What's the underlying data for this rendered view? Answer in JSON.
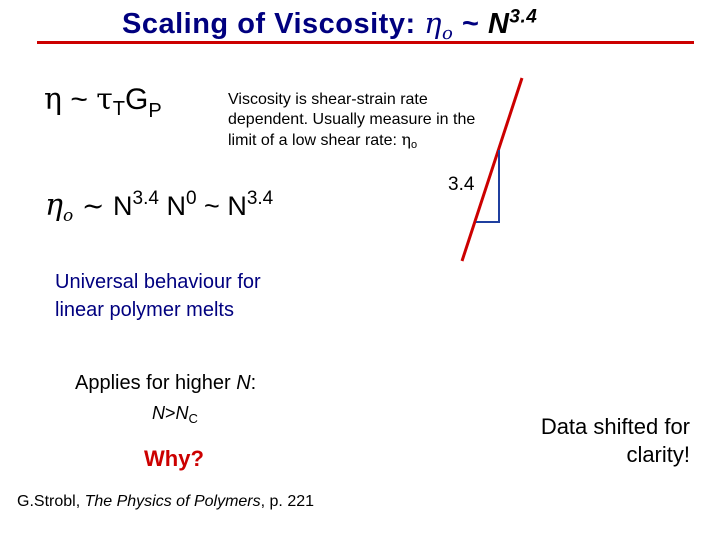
{
  "title": {
    "prefix": "Scaling of Viscosity: ",
    "eta": "η",
    "eta_sub": "o",
    "tilde": " ~ ",
    "n": "N",
    "exponent": "3.4"
  },
  "eq1": {
    "eta": "η",
    "tilde": " ~ ",
    "tau": "τ",
    "tau_sub": "T",
    "g": "G",
    "g_sub": "P"
  },
  "description": {
    "text": "Viscosity is shear-strain rate dependent. Usually measure in the limit of a low shear rate: ",
    "eta": "η",
    "eta_sub": "o"
  },
  "eq2": {
    "eta": "η",
    "eta_sub": "o",
    "t1": " ~ ",
    "n1": "N",
    "e1": "3.4",
    "n2": " N",
    "e2": "0",
    "t2": " ~ ",
    "n3": "N",
    "e3": "3.4"
  },
  "universal": "Universal behaviour for linear polymer melts",
  "applies": {
    "prefix": "Applies for higher ",
    "n": "N",
    "suffix": ":"
  },
  "condition": {
    "n": "N",
    "gt": ">",
    "n2": "N",
    "sub": "C"
  },
  "why": "Why?",
  "citation": {
    "author": "G.Strobl, ",
    "book": "The Physics of Polymers",
    "page": ", p. 221"
  },
  "shifted_note": "Data shifted for clarity!",
  "slope_label": "3.4",
  "colors": {
    "title": "#00007f",
    "accent_red": "#cc0000",
    "note_blue": "#00007f"
  }
}
